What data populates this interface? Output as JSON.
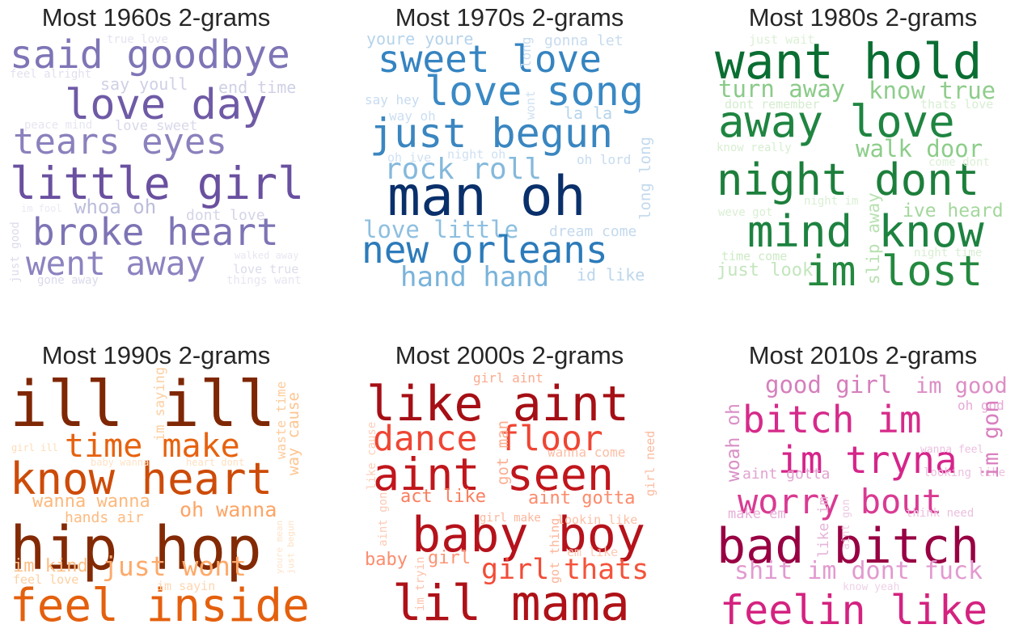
{
  "panels": [
    {
      "title": "Most 1960s 2-grams",
      "words": [
        {
          "text": "said goodbye",
          "color": "#7e75b6"
        },
        {
          "text": "love day",
          "color": "#6f5aa6"
        },
        {
          "text": "tears eyes",
          "color": "#8a81bd"
        },
        {
          "text": "little girl",
          "color": "#6a50a0"
        },
        {
          "text": "broke heart",
          "color": "#7d74b5"
        },
        {
          "text": "went away",
          "color": "#8c83c0"
        },
        {
          "text": "whoa oh",
          "color": "#bcbddc"
        },
        {
          "text": "say youll",
          "color": "#cfd0e6"
        },
        {
          "text": "end time",
          "color": "#cfd0e6"
        },
        {
          "text": "love sweet",
          "color": "#d8d8ea"
        },
        {
          "text": "dont love",
          "color": "#d4d4e8"
        },
        {
          "text": "true love",
          "color": "#e4e3f0"
        },
        {
          "text": "feel alright",
          "color": "#e1e1ef"
        },
        {
          "text": "peace mind",
          "color": "#e6e6f2"
        },
        {
          "text": "im fool",
          "color": "#e9e9f3"
        },
        {
          "text": "just good",
          "color": "#dcdcec"
        },
        {
          "text": "walked away",
          "color": "#e7e7f2"
        },
        {
          "text": "love true",
          "color": "#dcdcec"
        },
        {
          "text": "gone away",
          "color": "#dadaec"
        },
        {
          "text": "things want",
          "color": "#e6e6f2"
        }
      ]
    },
    {
      "title": "Most 1970s 2-grams",
      "words": [
        {
          "text": "sweet love",
          "color": "#3584c1"
        },
        {
          "text": "love song",
          "color": "#3a89c4"
        },
        {
          "text": "just begun",
          "color": "#3a86c0"
        },
        {
          "text": "rock roll",
          "color": "#84b9dc"
        },
        {
          "text": "man oh",
          "color": "#0a306b"
        },
        {
          "text": "love little",
          "color": "#8dbfe0"
        },
        {
          "text": "new orleans",
          "color": "#2c7bba"
        },
        {
          "text": "hand hand",
          "color": "#79b3da"
        },
        {
          "text": "youre youre",
          "color": "#b5d3ea"
        },
        {
          "text": "gonna let",
          "color": "#c7dbef"
        },
        {
          "text": "say hey",
          "color": "#c6dbef"
        },
        {
          "text": "way oh",
          "color": "#cddff0"
        },
        {
          "text": "la la",
          "color": "#b7d4ea"
        },
        {
          "text": "oh ive",
          "color": "#d0e1f2"
        },
        {
          "text": "night oh",
          "color": "#cfe0f2"
        },
        {
          "text": "oh lord",
          "color": "#c6dbef"
        },
        {
          "text": "dream come",
          "color": "#c3d9ee"
        },
        {
          "text": "id like",
          "color": "#bcd6ec"
        },
        {
          "text": "long",
          "color": "#c6dbef"
        },
        {
          "text": "wont",
          "color": "#d0e1f2"
        },
        {
          "text": "long long",
          "color": "#c2d9ee"
        }
      ]
    },
    {
      "title": "Most 1980s 2-grams",
      "words": [
        {
          "text": "want hold",
          "color": "#0a6e32"
        },
        {
          "text": "turn away",
          "color": "#8acb88"
        },
        {
          "text": "know true",
          "color": "#8fcd8c"
        },
        {
          "text": "away love",
          "color": "#1f8541"
        },
        {
          "text": "walk door",
          "color": "#8dcd8a"
        },
        {
          "text": "night dont",
          "color": "#1c7f3b"
        },
        {
          "text": "mind know",
          "color": "#1d8240"
        },
        {
          "text": "im lost",
          "color": "#23893f"
        },
        {
          "text": "ive heard",
          "color": "#a3d79c"
        },
        {
          "text": "just look",
          "color": "#c3e6bd"
        },
        {
          "text": "just wait",
          "color": "#dcf0d6"
        },
        {
          "text": "dont remember",
          "color": "#d4ecce"
        },
        {
          "text": "thats love",
          "color": "#d8eed2"
        },
        {
          "text": "know really",
          "color": "#d7eed1"
        },
        {
          "text": "come dont",
          "color": "#dcf0d6"
        },
        {
          "text": "night im",
          "color": "#d9efd3"
        },
        {
          "text": "weve got",
          "color": "#d9efd3"
        },
        {
          "text": "time come",
          "color": "#cdeac6"
        },
        {
          "text": "night time",
          "color": "#d8eed2"
        },
        {
          "text": "slip away",
          "color": "#b7e1b0"
        }
      ]
    },
    {
      "title": "Most 1990s 2-grams",
      "words": [
        {
          "text": "ill ill",
          "color": "#7f2704"
        },
        {
          "text": "time make",
          "color": "#e7620f"
        },
        {
          "text": "know heart",
          "color": "#cd4b08"
        },
        {
          "text": "wanna wanna",
          "color": "#fdb97d"
        },
        {
          "text": "hands air",
          "color": "#fdba7f"
        },
        {
          "text": "oh wanna",
          "color": "#fda465"
        },
        {
          "text": "hip hop",
          "color": "#832a05"
        },
        {
          "text": "im kind",
          "color": "#fdbd84"
        },
        {
          "text": "just wont",
          "color": "#fdaa6b"
        },
        {
          "text": "feel love",
          "color": "#fdd0a2"
        },
        {
          "text": "feel inside",
          "color": "#e4600e"
        },
        {
          "text": "girl ill",
          "color": "#fedcba"
        },
        {
          "text": "baby wanna",
          "color": "#fee2c6"
        },
        {
          "text": "heart dont",
          "color": "#fee0c1"
        },
        {
          "text": "im sayin",
          "color": "#fed6b0"
        },
        {
          "text": "im saying",
          "color": "#fdcfa0"
        },
        {
          "text": "waste time",
          "color": "#fdcb9b"
        },
        {
          "text": "way cause",
          "color": "#fdc590"
        },
        {
          "text": "youre mean",
          "color": "#fee3c8"
        },
        {
          "text": "just begun",
          "color": "#fee1c3"
        }
      ]
    },
    {
      "title": "Most 2000s 2-grams",
      "words": [
        {
          "text": "like aint",
          "color": "#a50f15"
        },
        {
          "text": "dance floor",
          "color": "#ef4533"
        },
        {
          "text": "aint seen",
          "color": "#c0161c"
        },
        {
          "text": "act like",
          "color": "#fb7d5d"
        },
        {
          "text": "aint gotta",
          "color": "#fc8a6a"
        },
        {
          "text": "baby boy",
          "color": "#b5121b"
        },
        {
          "text": "lil mama",
          "color": "#ae1117"
        },
        {
          "text": "thats",
          "color": "#f5533b"
        },
        {
          "text": "girl",
          "color": "#f24b36"
        },
        {
          "text": "baby",
          "color": "#fc8d6d"
        },
        {
          "text": "girl",
          "color": "#fc9373"
        },
        {
          "text": "girl aint",
          "color": "#fcaa8e"
        },
        {
          "text": "wanna come",
          "color": "#fdbea5"
        },
        {
          "text": "got man",
          "color": "#fcad91"
        },
        {
          "text": "girl make",
          "color": "#fcb59b"
        },
        {
          "text": "lookin like",
          "color": "#fcbfa6"
        },
        {
          "text": "em like",
          "color": "#fdcab5"
        },
        {
          "text": "girl need",
          "color": "#fcbba1"
        },
        {
          "text": "like cause",
          "color": "#fdcdb9"
        },
        {
          "text": "got thing",
          "color": "#fcb499"
        },
        {
          "text": "aint gon",
          "color": "#fdcab5"
        },
        {
          "text": "im tryin",
          "color": "#fdc2aa"
        }
      ]
    },
    {
      "title": "Most 2010s 2-grams",
      "words": [
        {
          "text": "good girl",
          "color": "#d57fbc"
        },
        {
          "text": "im good",
          "color": "#dc8ec5"
        },
        {
          "text": "bitch im",
          "color": "#d62a8a"
        },
        {
          "text": "im tryna",
          "color": "#d5258a"
        },
        {
          "text": "worry bout",
          "color": "#d93a92"
        },
        {
          "text": "bad bitch",
          "color": "#980043"
        },
        {
          "text": "shit im dont fuck",
          "color": "#e29ad0"
        },
        {
          "text": "feelin like",
          "color": "#d4227f"
        },
        {
          "text": "woah oh",
          "color": "#d98fc6"
        },
        {
          "text": "oh god",
          "color": "#e6a9d5"
        },
        {
          "text": "wanna feel",
          "color": "#ecc1e0"
        },
        {
          "text": "aint gotta",
          "color": "#e0a3d0"
        },
        {
          "text": "looking like",
          "color": "#ecbfe0"
        },
        {
          "text": "make em",
          "color": "#e6b0d8"
        },
        {
          "text": "think need",
          "color": "#ebc0df"
        },
        {
          "text": "im gon",
          "color": "#d980c0"
        },
        {
          "text": "like im",
          "color": "#e6b4d9"
        },
        {
          "text": "aint gon",
          "color": "#eccae3"
        },
        {
          "text": "know yeah",
          "color": "#efd2e7"
        }
      ]
    }
  ]
}
